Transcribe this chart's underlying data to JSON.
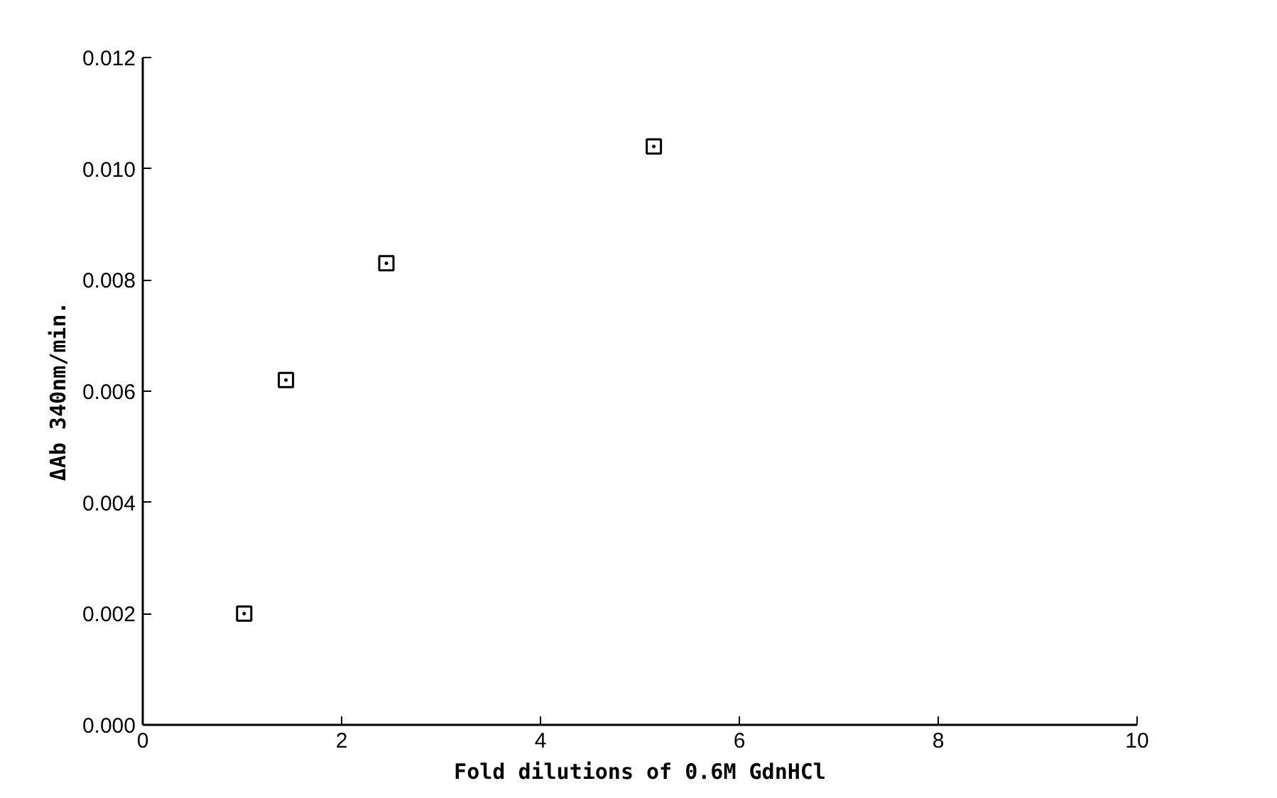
{
  "chart_data": {
    "type": "scatter",
    "xlabel": "Fold dilutions of 0.6M GdnHCl",
    "ylabel": "ΔAb 340nm/min.",
    "x": [
      1.02,
      1.44,
      2.45,
      5.14
    ],
    "series": [
      {
        "color": "#000000",
        "values": [
          0.002,
          0.0062,
          0.0083,
          0.0104
        ]
      }
    ],
    "xlim": [
      0,
      10
    ],
    "xticks": [
      0,
      2,
      4,
      6,
      8,
      10
    ],
    "ylim": [
      0,
      0.012
    ],
    "yticks": [
      {
        "value": 0,
        "label": "0.000"
      },
      {
        "value": 0.002,
        "label": "0.002"
      },
      {
        "value": 0.004,
        "label": "0.004"
      },
      {
        "value": 0.006,
        "label": "0.006"
      },
      {
        "value": 0.008,
        "label": "0.008"
      },
      {
        "value": 0.01,
        "label": "0.010"
      },
      {
        "value": 0.012,
        "label": "0.012"
      }
    ],
    "grid": false,
    "marker": "square"
  }
}
